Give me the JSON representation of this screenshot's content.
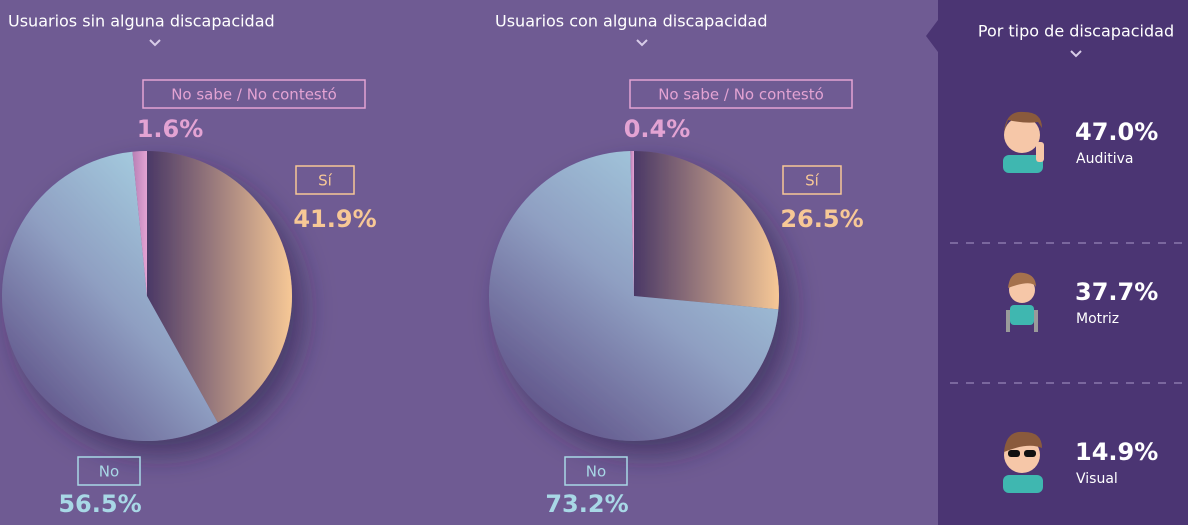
{
  "chart_data": [
    {
      "type": "pie",
      "title": "Usuarios sin alguna discapacidad",
      "categories": [
        "Sí",
        "No",
        "No sabe / No contestó"
      ],
      "values": [
        41.9,
        56.5,
        1.6
      ],
      "value_labels": [
        "41.9%",
        "56.5%",
        "1.6%"
      ],
      "colors": [
        "#f7c896",
        "#a8d8e6",
        "#e3a3d3"
      ]
    },
    {
      "type": "pie",
      "title": "Usuarios con alguna discapacidad",
      "categories": [
        "Sí",
        "No",
        "No sabe / No contestó"
      ],
      "values": [
        26.5,
        73.2,
        0.4
      ],
      "value_labels": [
        "26.5%",
        "73.2%",
        "0.4%"
      ],
      "colors": [
        "#f7c896",
        "#a8d8e6",
        "#e3a3d3"
      ]
    }
  ],
  "side_panel": {
    "title": "Por tipo de discapacidad",
    "items": [
      {
        "value": "47.0%",
        "label": "Auditiva"
      },
      {
        "value": "37.7%",
        "label": "Motriz"
      },
      {
        "value": "14.9%",
        "label": "Visual"
      }
    ]
  }
}
